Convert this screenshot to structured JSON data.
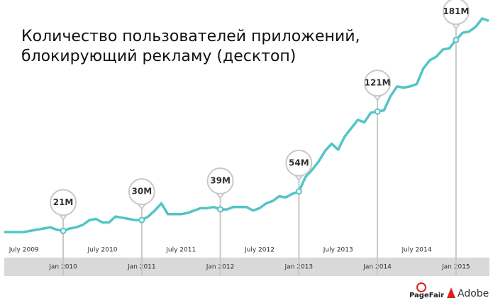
{
  "chart_data": {
    "type": "line",
    "title": [
      "Количество пользователей приложений,",
      "блокирующий рекламу (десктоп)"
    ],
    "categories": [
      null,
      null,
      null,
      "July 2009",
      null,
      null,
      null,
      null,
      null,
      "Jan 2010",
      null,
      null,
      null,
      null,
      null,
      "July 2010",
      null,
      null,
      null,
      null,
      null,
      "Jan 2011",
      null,
      null,
      null,
      null,
      null,
      "July 2011",
      null,
      null,
      null,
      null,
      null,
      "Jan 2012",
      null,
      null,
      null,
      null,
      null,
      "July 2012",
      null,
      null,
      null,
      null,
      null,
      "Jan 2013",
      null,
      null,
      null,
      null,
      null,
      "July 2013",
      null,
      null,
      null,
      null,
      null,
      "Jan 2014",
      null,
      null,
      null,
      null,
      null,
      "July 2014",
      null,
      null,
      null,
      null,
      null,
      "Jan 2015",
      null,
      null,
      null,
      null,
      null
    ],
    "values": [
      20,
      20,
      20,
      20,
      21,
      22,
      23,
      24,
      22,
      21,
      23,
      24,
      26,
      30,
      31,
      28,
      28,
      33,
      32,
      31,
      30,
      30,
      33,
      38,
      44,
      35,
      35,
      35,
      36,
      38,
      40,
      40,
      41,
      39,
      39,
      41,
      41,
      41,
      38,
      40,
      44,
      46,
      50,
      49,
      52,
      54,
      66,
      72,
      79,
      88,
      94,
      89,
      100,
      107,
      114,
      112,
      120,
      121,
      122,
      134,
      142,
      141,
      142,
      144,
      157,
      164,
      167,
      173,
      174,
      181,
      187,
      188,
      192,
      199,
      197
    ],
    "value_labels": [
      null,
      null,
      null,
      null,
      null,
      null,
      null,
      null,
      null,
      "21M",
      null,
      null,
      null,
      null,
      null,
      null,
      null,
      null,
      null,
      null,
      null,
      "30M",
      null,
      null,
      null,
      null,
      null,
      null,
      null,
      null,
      null,
      null,
      null,
      "39M",
      null,
      null,
      null,
      null,
      null,
      null,
      null,
      null,
      null,
      null,
      null,
      "54M",
      null,
      null,
      null,
      null,
      null,
      null,
      null,
      null,
      null,
      null,
      null,
      "121M",
      null,
      null,
      null,
      null,
      null,
      null,
      null,
      null,
      null,
      null,
      null,
      "181M",
      null,
      null,
      null,
      null,
      null
    ],
    "color": "#52c5c6"
  },
  "logos": [
    "PageFair",
    "Adobe"
  ]
}
